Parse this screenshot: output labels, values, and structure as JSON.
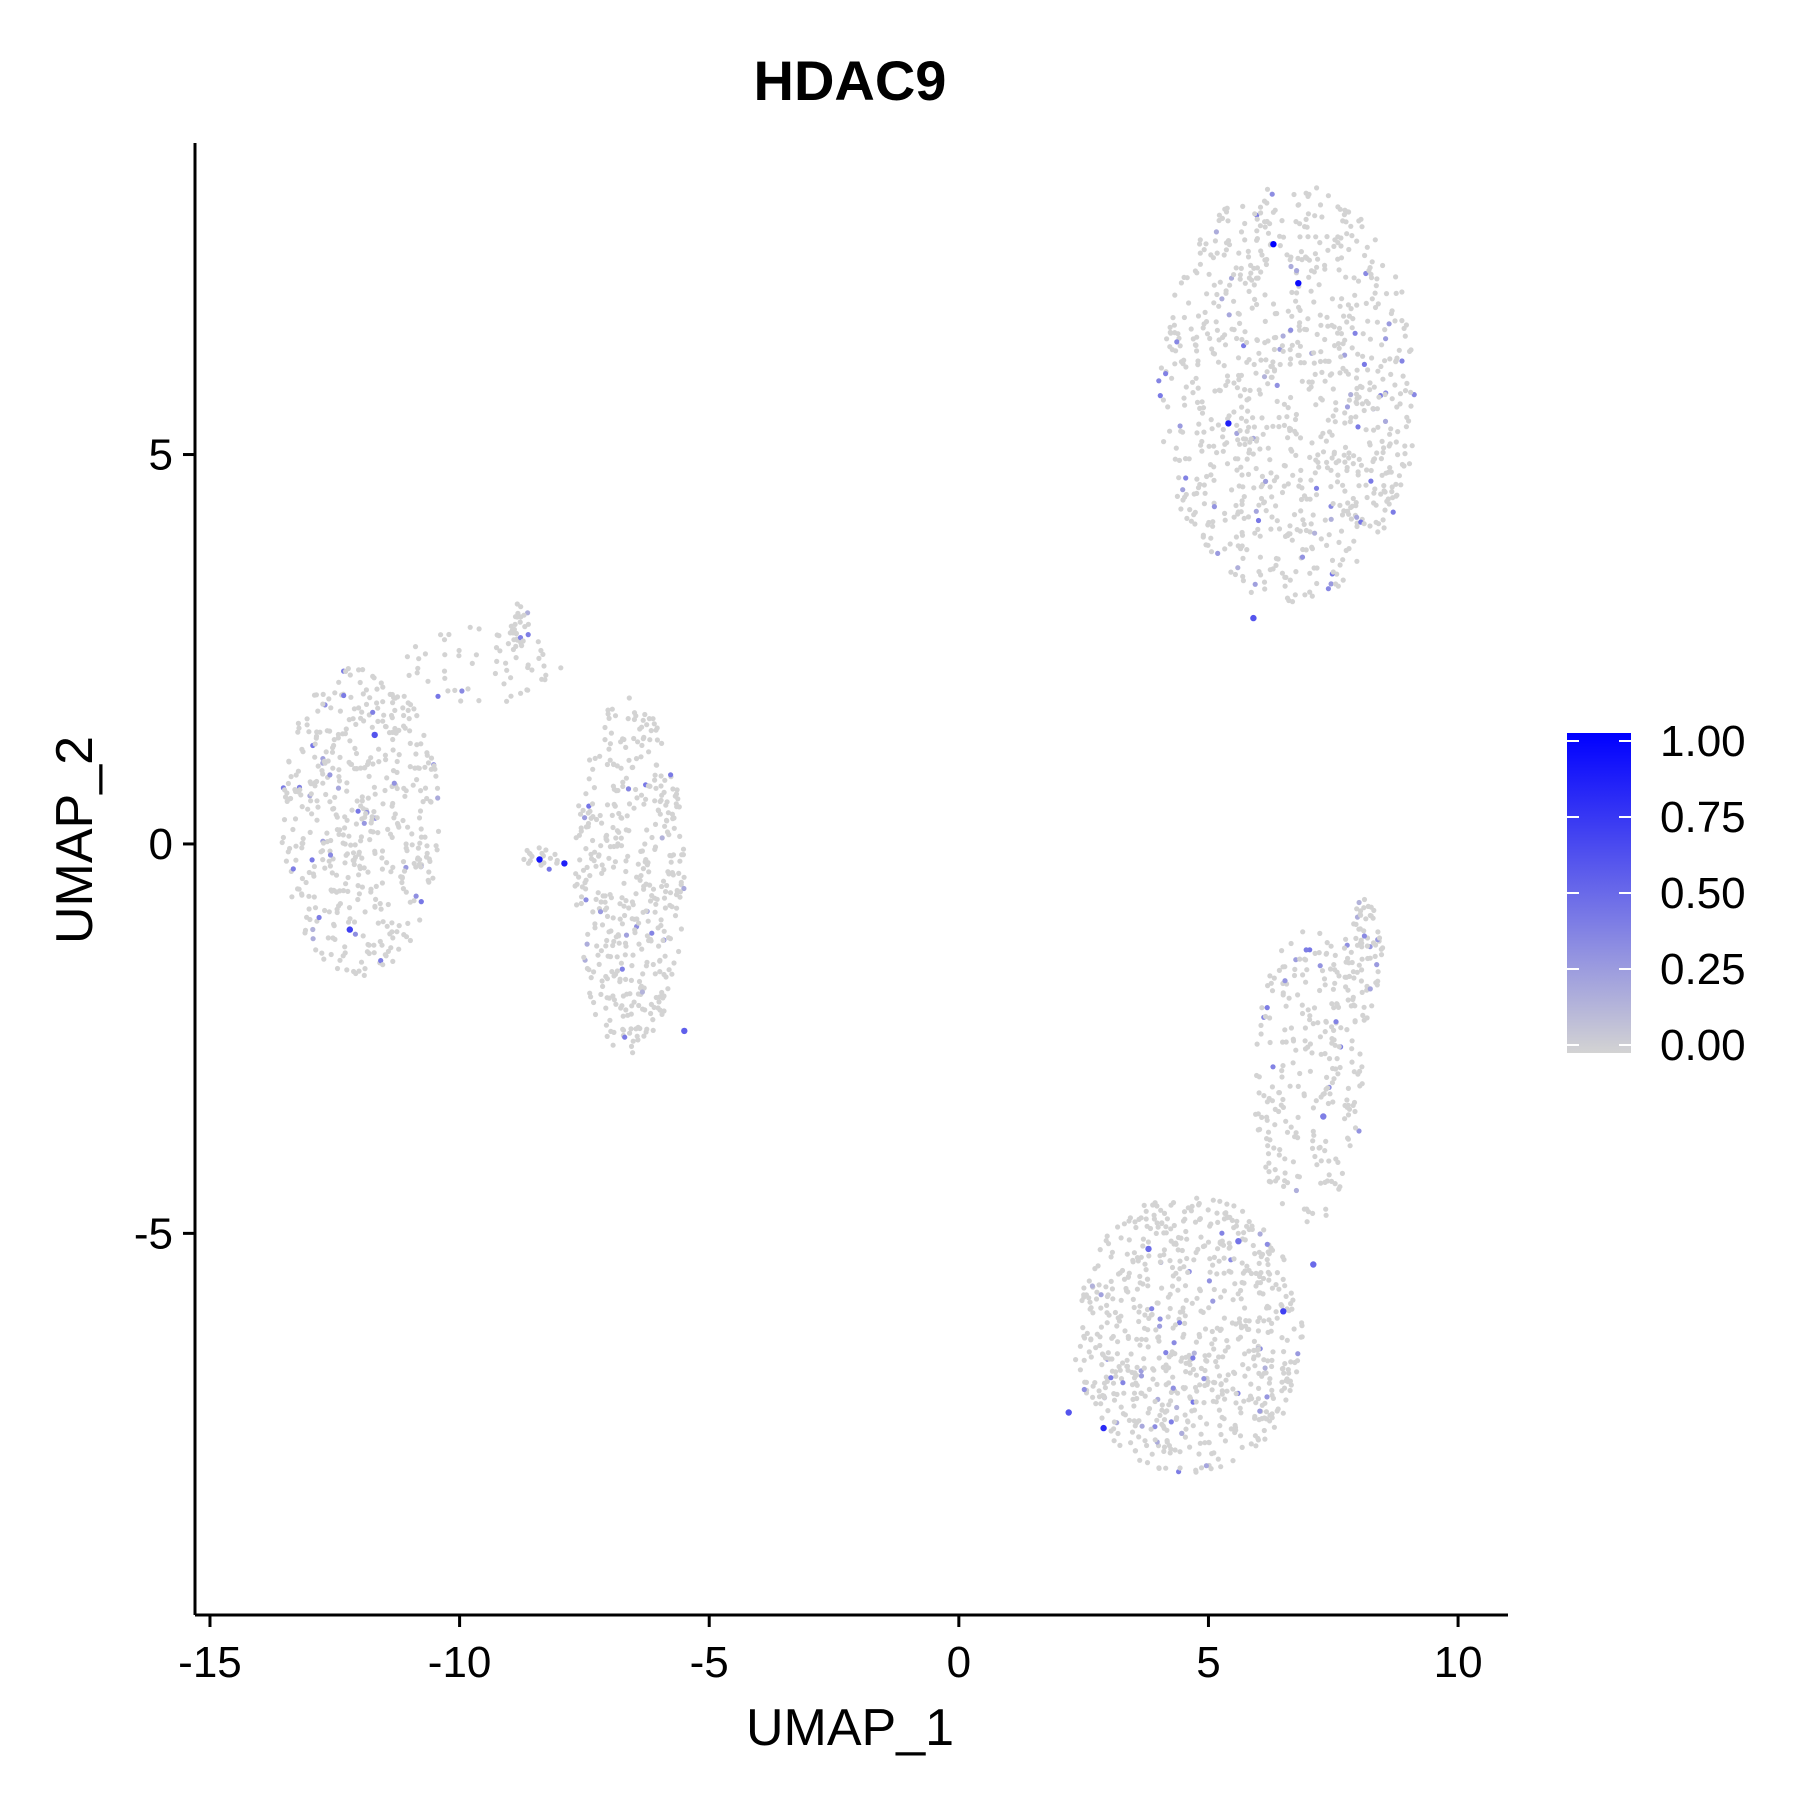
{
  "chart_data": {
    "type": "scatter",
    "title": "HDAC9",
    "xlabel": "UMAP_1",
    "ylabel": "UMAP_2",
    "xlim": [
      -15.3,
      11.0
    ],
    "ylim": [
      -9.9,
      9.0
    ],
    "x_ticks": [
      -15,
      -10,
      -5,
      0,
      5,
      10
    ],
    "x_tick_labels": [
      "-15",
      "-10",
      "-5",
      "0",
      "5",
      "10"
    ],
    "y_ticks": [
      5,
      0,
      -5
    ],
    "y_tick_labels": [
      "5",
      "0",
      "-5"
    ],
    "grid": false,
    "legend": {
      "placement": "right",
      "type": "colorbar",
      "range": [
        0,
        1
      ],
      "ticks": [
        1.0,
        0.75,
        0.5,
        0.25,
        0.0
      ],
      "tick_labels": [
        "1.00",
        "0.75",
        "0.50",
        "0.25",
        "0.00"
      ],
      "low_color": "#d3d3d3",
      "high_color": "#0000ff"
    },
    "point_color": "#d3d3d3",
    "clusters": [
      {
        "cx": 6.6,
        "cy": 5.8,
        "rx": 2.6,
        "ry": 2.7,
        "n": 900
      },
      {
        "cx": -12.0,
        "cy": 0.3,
        "rx": 1.6,
        "ry": 2.0,
        "n": 500
      },
      {
        "cx": -6.6,
        "cy": -0.4,
        "rx": 1.1,
        "ry": 2.3,
        "n": 450
      },
      {
        "cx": -9.5,
        "cy": 2.3,
        "rx": 1.6,
        "ry": 0.5,
        "n": 60
      },
      {
        "cx": -8.8,
        "cy": 2.8,
        "rx": 0.2,
        "ry": 0.3,
        "n": 25
      },
      {
        "cx": -8.4,
        "cy": -0.2,
        "rx": 0.4,
        "ry": 0.15,
        "n": 20
      },
      {
        "cx": 4.6,
        "cy": -6.3,
        "rx": 2.3,
        "ry": 1.8,
        "n": 750
      },
      {
        "cx": 7.0,
        "cy": -3.0,
        "rx": 1.1,
        "ry": 1.9,
        "n": 250
      },
      {
        "cx": 8.1,
        "cy": -1.5,
        "rx": 0.4,
        "ry": 0.8,
        "n": 80
      }
    ],
    "high_points": [
      {
        "x": 6.3,
        "y": 7.7,
        "v": 1.0
      },
      {
        "x": 6.8,
        "y": 7.2,
        "v": 0.95
      },
      {
        "x": 5.4,
        "y": 5.4,
        "v": 0.85
      },
      {
        "x": 5.9,
        "y": 2.9,
        "v": 0.6
      },
      {
        "x": -8.4,
        "y": -0.2,
        "v": 0.9
      },
      {
        "x": -7.9,
        "y": -0.25,
        "v": 0.85
      },
      {
        "x": -12.2,
        "y": -1.1,
        "v": 0.7
      },
      {
        "x": -11.7,
        "y": 1.4,
        "v": 0.6
      },
      {
        "x": 2.9,
        "y": -7.5,
        "v": 0.8
      },
      {
        "x": 6.5,
        "y": -6.0,
        "v": 0.7
      },
      {
        "x": 2.2,
        "y": -7.3,
        "v": 0.6
      },
      {
        "x": 3.8,
        "y": -5.2,
        "v": 0.5
      },
      {
        "x": 5.6,
        "y": -5.1,
        "v": 0.45
      },
      {
        "x": 7.1,
        "y": -5.4,
        "v": 0.5
      },
      {
        "x": -5.5,
        "y": -2.4,
        "v": 0.55
      },
      {
        "x": 7.3,
        "y": -3.5,
        "v": 0.4
      }
    ]
  }
}
